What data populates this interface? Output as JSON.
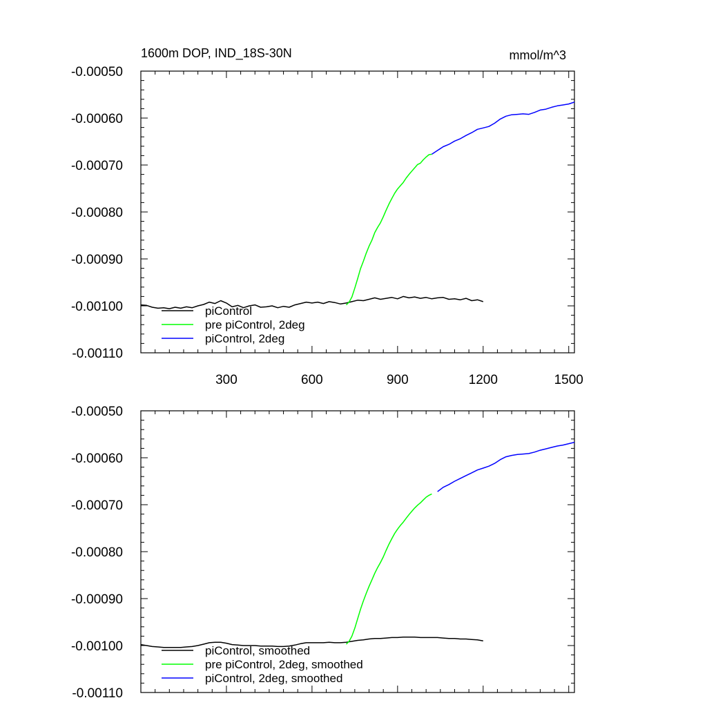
{
  "figure": {
    "title_left": "1600m DOP, IND_18S-30N",
    "title_right": "mmol/m^3"
  },
  "chart_data": [
    {
      "type": "line",
      "name": "raw",
      "xlim": [
        0,
        1520
      ],
      "ylim": [
        -0.0011,
        -0.0005
      ],
      "yticks": [
        -0.0005,
        -0.0006,
        -0.0007,
        -0.0008,
        -0.0009,
        -0.001,
        -0.0011
      ],
      "ytick_labels": [
        "-0.00050",
        "-0.00060",
        "-0.00070",
        "-0.00080",
        "-0.00090",
        "-0.00100",
        "-0.00110"
      ],
      "xticks": [
        300,
        600,
        900,
        1200,
        1500
      ],
      "xtick_labels": [
        "300",
        "600",
        "900",
        "1200",
        "1500"
      ],
      "legend": [
        "piControl",
        "pre piControl, 2deg",
        "piControl, 2deg"
      ],
      "series": [
        {
          "name": "piControl",
          "color": "#000000",
          "x": [
            0,
            20,
            40,
            60,
            80,
            100,
            120,
            140,
            160,
            180,
            200,
            220,
            240,
            260,
            280,
            300,
            320,
            340,
            360,
            380,
            400,
            420,
            440,
            460,
            480,
            500,
            520,
            540,
            560,
            580,
            600,
            620,
            640,
            660,
            680,
            700,
            720,
            740,
            760,
            780,
            800,
            820,
            840,
            860,
            880,
            900,
            920,
            940,
            960,
            980,
            1000,
            1020,
            1040,
            1060,
            1080,
            1100,
            1120,
            1140,
            1160,
            1180,
            1200
          ],
          "y": [
            -0.000998,
            -0.000999,
            -0.001003,
            -0.001005,
            -0.001004,
            -0.001006,
            -0.001003,
            -0.001005,
            -0.001002,
            -0.001004,
            -0.001,
            -0.000997,
            -0.000992,
            -0.000995,
            -0.000989,
            -0.000994,
            -0.001002,
            -0.000999,
            -0.001004,
            -0.001,
            -0.000998,
            -0.001003,
            -0.001002,
            -0.001,
            -0.001004,
            -0.001001,
            -0.001003,
            -0.000998,
            -0.000995,
            -0.000992,
            -0.000994,
            -0.000992,
            -0.000995,
            -0.000991,
            -0.000993,
            -0.000996,
            -0.000994,
            -0.000991,
            -0.000988,
            -0.000989,
            -0.000986,
            -0.000983,
            -0.000986,
            -0.000984,
            -0.000982,
            -0.000985,
            -0.00098,
            -0.000983,
            -0.000981,
            -0.000984,
            -0.000982,
            -0.000985,
            -0.000983,
            -0.000982,
            -0.000986,
            -0.000985,
            -0.000987,
            -0.000984,
            -0.000989,
            -0.000987,
            -0.000991
          ]
        },
        {
          "name": "pre piControl, 2deg",
          "color": "#00ff00",
          "x": [
            720,
            730,
            740,
            750,
            760,
            770,
            780,
            790,
            800,
            810,
            820,
            830,
            840,
            850,
            860,
            870,
            880,
            890,
            900,
            910,
            920,
            930,
            940,
            950,
            960,
            970,
            980,
            990,
            1000,
            1010,
            1020
          ],
          "y": [
            -0.000998,
            -0.000992,
            -0.000981,
            -0.000962,
            -0.000942,
            -0.000921,
            -0.000905,
            -0.000888,
            -0.000873,
            -0.00086,
            -0.000844,
            -0.000833,
            -0.000823,
            -0.00081,
            -0.000796,
            -0.000783,
            -0.000771,
            -0.00076,
            -0.000751,
            -0.000744,
            -0.000737,
            -0.000728,
            -0.00072,
            -0.000713,
            -0.000706,
            -0.000699,
            -0.000696,
            -0.000689,
            -0.000683,
            -0.000678,
            -0.000677
          ]
        },
        {
          "name": "piControl, 2deg",
          "color": "#0000ff",
          "x": [
            1020,
            1040,
            1060,
            1080,
            1100,
            1120,
            1140,
            1160,
            1180,
            1200,
            1220,
            1240,
            1260,
            1280,
            1300,
            1320,
            1340,
            1360,
            1380,
            1400,
            1420,
            1440,
            1460,
            1480,
            1500,
            1520
          ],
          "y": [
            -0.000677,
            -0.000669,
            -0.000661,
            -0.000656,
            -0.000649,
            -0.000644,
            -0.000637,
            -0.000631,
            -0.000624,
            -0.000621,
            -0.000618,
            -0.000611,
            -0.000602,
            -0.000596,
            -0.000593,
            -0.000592,
            -0.000591,
            -0.000592,
            -0.000588,
            -0.000583,
            -0.000581,
            -0.000577,
            -0.000574,
            -0.000572,
            -0.00057,
            -0.000566
          ]
        }
      ]
    },
    {
      "type": "line",
      "name": "smoothed",
      "xlim": [
        0,
        1520
      ],
      "ylim": [
        -0.0011,
        -0.0005
      ],
      "yticks": [
        -0.0005,
        -0.0006,
        -0.0007,
        -0.0008,
        -0.0009,
        -0.001,
        -0.0011
      ],
      "ytick_labels": [
        "-0.00050",
        "-0.00060",
        "-0.00070",
        "-0.00080",
        "-0.00090",
        "-0.00100",
        "-0.00110"
      ],
      "xticks": [
        300,
        600,
        900,
        1200,
        1500
      ],
      "xtick_labels": [],
      "legend": [
        "piControl, smoothed",
        "pre piControl, 2deg, smoothed",
        "piControl, 2deg, smoothed"
      ],
      "series": [
        {
          "name": "piControl, smoothed",
          "color": "#000000",
          "x": [
            0,
            20,
            40,
            60,
            80,
            100,
            120,
            140,
            160,
            180,
            200,
            220,
            240,
            260,
            280,
            300,
            320,
            340,
            360,
            380,
            400,
            420,
            440,
            460,
            480,
            500,
            520,
            540,
            560,
            580,
            600,
            620,
            640,
            660,
            680,
            700,
            720,
            740,
            760,
            780,
            800,
            820,
            840,
            860,
            880,
            900,
            920,
            940,
            960,
            980,
            1000,
            1020,
            1040,
            1060,
            1080,
            1100,
            1120,
            1140,
            1160,
            1180,
            1200
          ],
          "y": [
            -0.000998,
            -0.001,
            -0.001002,
            -0.001003,
            -0.001004,
            -0.001004,
            -0.001004,
            -0.001004,
            -0.001003,
            -0.001002,
            -0.001,
            -0.000997,
            -0.000994,
            -0.000993,
            -0.000993,
            -0.000995,
            -0.000998,
            -0.000999,
            -0.001,
            -0.001,
            -0.001,
            -0.001001,
            -0.001001,
            -0.001001,
            -0.001002,
            -0.001002,
            -0.001001,
            -0.000999,
            -0.000996,
            -0.000994,
            -0.000994,
            -0.000994,
            -0.000994,
            -0.000993,
            -0.000994,
            -0.000994,
            -0.000993,
            -0.000991,
            -0.000989,
            -0.000988,
            -0.000986,
            -0.000985,
            -0.000985,
            -0.000984,
            -0.000983,
            -0.000983,
            -0.000982,
            -0.000982,
            -0.000982,
            -0.000983,
            -0.000983,
            -0.000983,
            -0.000983,
            -0.000984,
            -0.000985,
            -0.000985,
            -0.000986,
            -0.000986,
            -0.000987,
            -0.000988,
            -0.00099
          ]
        },
        {
          "name": "pre piControl, 2deg, smoothed",
          "color": "#00ff00",
          "x": [
            720,
            730,
            740,
            750,
            760,
            770,
            780,
            790,
            800,
            810,
            820,
            830,
            840,
            850,
            860,
            870,
            880,
            890,
            900,
            910,
            920,
            930,
            940,
            950,
            960,
            970,
            980,
            990,
            1000,
            1010,
            1020
          ],
          "y": [
            -0.000997,
            -0.000991,
            -0.00098,
            -0.000963,
            -0.000943,
            -0.000923,
            -0.000905,
            -0.000889,
            -0.000874,
            -0.00086,
            -0.000846,
            -0.000834,
            -0.000823,
            -0.000811,
            -0.000797,
            -0.000784,
            -0.000772,
            -0.000761,
            -0.000752,
            -0.000744,
            -0.000737,
            -0.000729,
            -0.000721,
            -0.000714,
            -0.000707,
            -0.000701,
            -0.000696,
            -0.00069,
            -0.000684,
            -0.00068,
            -0.000677
          ]
        },
        {
          "name": "piControl, 2deg, smoothed",
          "color": "#0000ff",
          "x": [
            1040,
            1060,
            1080,
            1100,
            1120,
            1140,
            1160,
            1180,
            1200,
            1220,
            1240,
            1260,
            1280,
            1300,
            1320,
            1340,
            1360,
            1380,
            1400,
            1420,
            1440,
            1460,
            1480,
            1500,
            1520
          ],
          "y": [
            -0.000672,
            -0.000663,
            -0.000657,
            -0.00065,
            -0.000644,
            -0.000638,
            -0.000632,
            -0.000626,
            -0.000622,
            -0.000618,
            -0.000612,
            -0.000604,
            -0.000598,
            -0.000595,
            -0.000593,
            -0.000592,
            -0.000591,
            -0.000588,
            -0.000584,
            -0.000581,
            -0.000578,
            -0.000575,
            -0.000573,
            -0.00057,
            -0.000567
          ]
        }
      ]
    }
  ]
}
